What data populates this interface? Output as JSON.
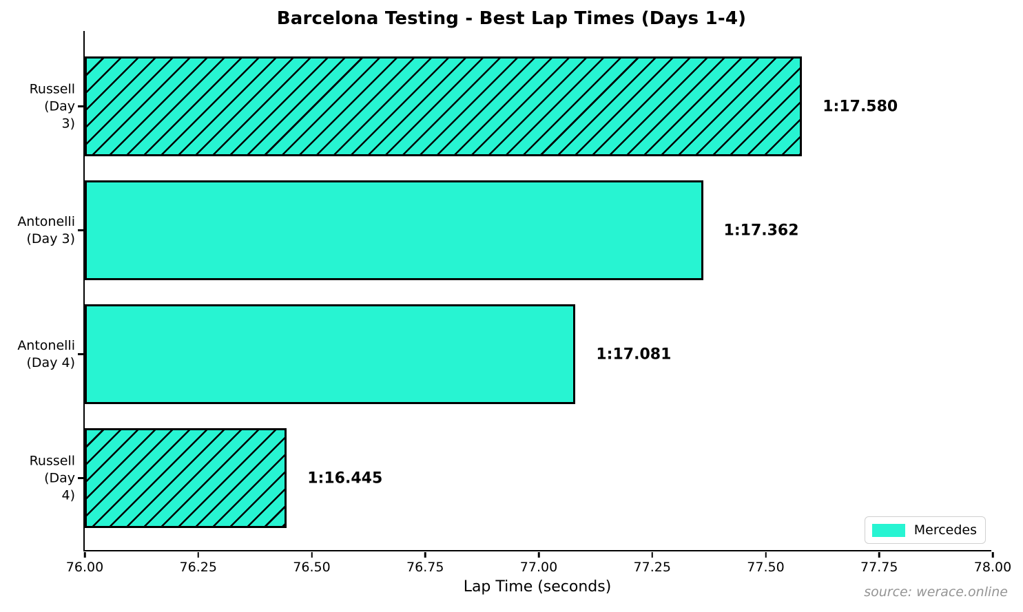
{
  "chart_data": {
    "type": "bar",
    "orientation": "horizontal",
    "title": "Barcelona Testing - Best Lap Times (Days 1-4)",
    "categories": [
      "Russell\n(Day 3)",
      "Antonelli\n(Day 3)",
      "Antonelli\n(Day 4)",
      "Russell\n(Day 4)"
    ],
    "values": [
      77.58,
      77.362,
      77.081,
      76.445
    ],
    "value_labels": [
      "1:17.580",
      "1:17.362",
      "1:17.081",
      "1:16.445"
    ],
    "hatched": [
      true,
      false,
      false,
      true
    ],
    "xlabel": "Lap Time (seconds)",
    "xlim": [
      76.0,
      78.0
    ],
    "xticks": [
      "76.00",
      "76.25",
      "76.50",
      "76.75",
      "77.00",
      "77.25",
      "77.50",
      "77.75",
      "78.00"
    ],
    "legend": {
      "label": "Mercedes",
      "position": "lower right"
    },
    "grid": false,
    "bar_color": "#27F4D2",
    "edge_color": "#000000",
    "source": "source: werace.online"
  }
}
